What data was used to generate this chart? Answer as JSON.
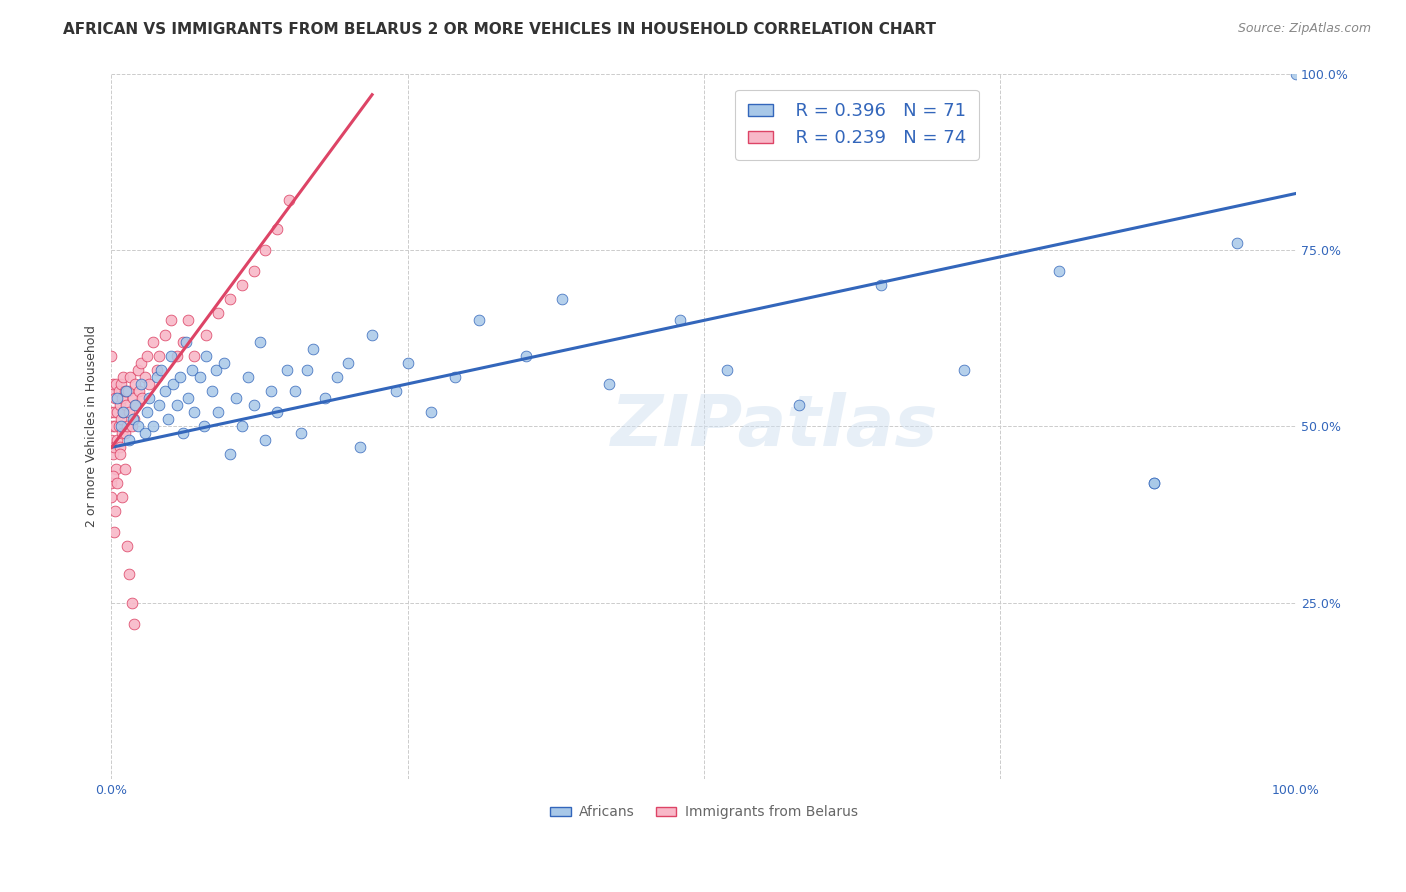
{
  "title": "AFRICAN VS IMMIGRANTS FROM BELARUS 2 OR MORE VEHICLES IN HOUSEHOLD CORRELATION CHART",
  "source": "Source: ZipAtlas.com",
  "ylabel": "2 or more Vehicles in Household",
  "xlim": [
    0.0,
    1.0
  ],
  "ylim": [
    0.0,
    1.0
  ],
  "legend_r_african": "R = 0.396",
  "legend_n_african": "N = 71",
  "legend_r_belarus": "R = 0.239",
  "legend_n_belarus": "N = 74",
  "color_african": "#a8c8e8",
  "color_belarus": "#f8b8c8",
  "color_line_african": "#3366bb",
  "color_line_belarus": "#dd4466",
  "watermark": "ZIPatlas",
  "title_fontsize": 11,
  "source_fontsize": 9,
  "axis_label_fontsize": 9,
  "tick_fontsize": 9,
  "legend_fontsize": 13,
  "watermark_fontsize": 52,
  "background_color": "#ffffff",
  "grid_color": "#cccccc",
  "african_line_x0": 0.0,
  "african_line_x1": 1.0,
  "african_line_y0": 0.47,
  "african_line_y1": 0.83,
  "belarus_line_x0": 0.0,
  "belarus_line_x1": 0.22,
  "belarus_line_y0": 0.47,
  "belarus_line_y1": 0.97,
  "africans_x": [
    0.005,
    0.008,
    0.01,
    0.012,
    0.015,
    0.018,
    0.02,
    0.022,
    0.025,
    0.028,
    0.03,
    0.032,
    0.035,
    0.038,
    0.04,
    0.042,
    0.045,
    0.048,
    0.05,
    0.052,
    0.055,
    0.058,
    0.06,
    0.063,
    0.065,
    0.068,
    0.07,
    0.075,
    0.078,
    0.08,
    0.085,
    0.088,
    0.09,
    0.095,
    0.1,
    0.105,
    0.11,
    0.115,
    0.12,
    0.125,
    0.13,
    0.135,
    0.14,
    0.148,
    0.155,
    0.16,
    0.165,
    0.17,
    0.18,
    0.19,
    0.2,
    0.21,
    0.22,
    0.24,
    0.25,
    0.27,
    0.29,
    0.31,
    0.35,
    0.38,
    0.42,
    0.48,
    0.52,
    0.58,
    0.65,
    0.72,
    0.8,
    0.88,
    0.95,
    1.0,
    0.88
  ],
  "africans_y": [
    0.54,
    0.5,
    0.52,
    0.55,
    0.48,
    0.51,
    0.53,
    0.5,
    0.56,
    0.49,
    0.52,
    0.54,
    0.5,
    0.57,
    0.53,
    0.58,
    0.55,
    0.51,
    0.6,
    0.56,
    0.53,
    0.57,
    0.49,
    0.62,
    0.54,
    0.58,
    0.52,
    0.57,
    0.5,
    0.6,
    0.55,
    0.58,
    0.52,
    0.59,
    0.46,
    0.54,
    0.5,
    0.57,
    0.53,
    0.62,
    0.48,
    0.55,
    0.52,
    0.58,
    0.55,
    0.49,
    0.58,
    0.61,
    0.54,
    0.57,
    0.59,
    0.47,
    0.63,
    0.55,
    0.59,
    0.52,
    0.57,
    0.65,
    0.6,
    0.68,
    0.56,
    0.65,
    0.58,
    0.53,
    0.7,
    0.58,
    0.72,
    0.42,
    0.76,
    1.0,
    0.42
  ],
  "belarus_x": [
    0.0,
    0.0,
    0.0,
    0.0,
    0.0,
    0.001,
    0.001,
    0.001,
    0.002,
    0.002,
    0.003,
    0.003,
    0.004,
    0.004,
    0.005,
    0.005,
    0.006,
    0.006,
    0.007,
    0.007,
    0.008,
    0.008,
    0.009,
    0.009,
    0.01,
    0.01,
    0.011,
    0.011,
    0.012,
    0.013,
    0.014,
    0.015,
    0.016,
    0.017,
    0.018,
    0.019,
    0.02,
    0.021,
    0.022,
    0.023,
    0.025,
    0.026,
    0.028,
    0.03,
    0.032,
    0.035,
    0.038,
    0.04,
    0.045,
    0.05,
    0.055,
    0.06,
    0.065,
    0.07,
    0.08,
    0.09,
    0.1,
    0.11,
    0.12,
    0.13,
    0.14,
    0.15,
    0.0,
    0.001,
    0.002,
    0.003,
    0.005,
    0.007,
    0.009,
    0.011,
    0.013,
    0.015,
    0.017,
    0.019
  ],
  "belarus_y": [
    0.52,
    0.48,
    0.55,
    0.42,
    0.6,
    0.5,
    0.46,
    0.56,
    0.52,
    0.47,
    0.54,
    0.5,
    0.56,
    0.44,
    0.52,
    0.48,
    0.55,
    0.5,
    0.53,
    0.47,
    0.56,
    0.51,
    0.54,
    0.49,
    0.57,
    0.52,
    0.55,
    0.49,
    0.53,
    0.5,
    0.55,
    0.52,
    0.57,
    0.5,
    0.54,
    0.51,
    0.56,
    0.53,
    0.58,
    0.55,
    0.59,
    0.54,
    0.57,
    0.6,
    0.56,
    0.62,
    0.58,
    0.6,
    0.63,
    0.65,
    0.6,
    0.62,
    0.65,
    0.6,
    0.63,
    0.66,
    0.68,
    0.7,
    0.72,
    0.75,
    0.78,
    0.82,
    0.4,
    0.43,
    0.35,
    0.38,
    0.42,
    0.46,
    0.4,
    0.44,
    0.33,
    0.29,
    0.25,
    0.22
  ]
}
